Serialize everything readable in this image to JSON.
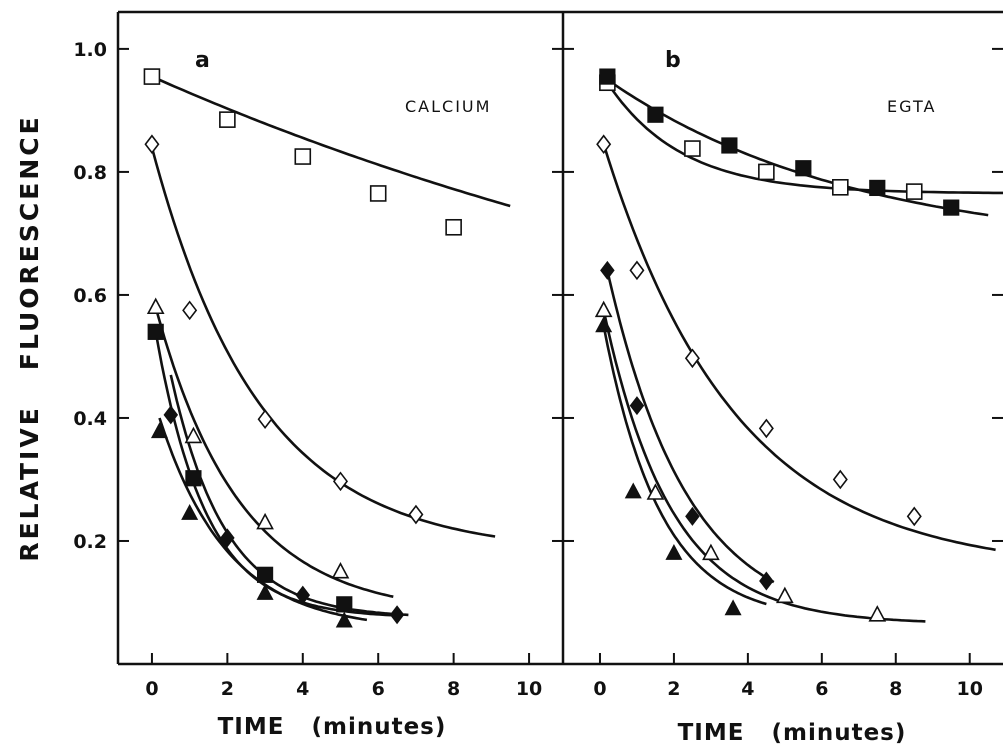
{
  "chart_data": [
    {
      "type": "scatter",
      "panel": "a",
      "condition": "CALCIUM",
      "xlabel": "TIME   (minutes)",
      "ylabel": "RELATIVE   FLUORESCENCE",
      "xlim": [
        -0.9,
        10.9
      ],
      "ylim": [
        0.0,
        1.06
      ],
      "xticks": [
        0,
        2,
        4,
        6,
        8,
        10
      ],
      "yticks": [
        0.2,
        0.4,
        0.6,
        0.8,
        1.0
      ],
      "xtick_labels": [
        "0",
        "2",
        "4",
        "6",
        "8",
        "10"
      ],
      "ytick_labels": [
        "0.2",
        "0.4",
        "0.6",
        "0.8",
        "1.0"
      ],
      "series": [
        {
          "marker": "open-square",
          "x": [
            0,
            2,
            4,
            6,
            8
          ],
          "y": [
            0.955,
            0.885,
            0.825,
            0.765,
            0.71
          ],
          "fit": {
            "a": 0.955,
            "k": 0.045,
            "c": 0.35,
            "xmax": 9.5
          }
        },
        {
          "marker": "open-diamond",
          "x": [
            0,
            1,
            3,
            5,
            7
          ],
          "y": [
            0.845,
            0.575,
            0.398,
            0.297,
            0.243
          ],
          "fit": {
            "a": 0.84,
            "k": 0.35,
            "c": 0.18,
            "xmax": 9.1
          }
        },
        {
          "marker": "open-triangle",
          "x": [
            0.1,
            1.1,
            3,
            5
          ],
          "y": [
            0.58,
            0.37,
            0.23,
            0.15
          ],
          "fit": {
            "a": 0.58,
            "k": 0.45,
            "c": 0.08,
            "xmax": 6.4
          }
        },
        {
          "marker": "filled-square",
          "x": [
            0.1,
            1.1,
            3,
            5.1
          ],
          "y": [
            0.54,
            0.302,
            0.145,
            0.097
          ],
          "fit": {
            "a": 0.54,
            "k": 0.75,
            "c": 0.075,
            "xmax": 6.6
          }
        },
        {
          "marker": "filled-diamond",
          "x": [
            0.5,
            2,
            4,
            6.5
          ],
          "y": [
            0.405,
            0.205,
            0.112,
            0.08
          ],
          "fit": {
            "a": 0.47,
            "k": 0.7,
            "c": 0.075,
            "xmax": 6.8
          }
        },
        {
          "marker": "filled-triangle",
          "x": [
            0.2,
            1,
            3,
            5.1
          ],
          "y": [
            0.378,
            0.245,
            0.115,
            0.07
          ],
          "fit": {
            "a": 0.4,
            "k": 0.55,
            "c": 0.055,
            "xmax": 5.7
          }
        }
      ]
    },
    {
      "type": "scatter",
      "panel": "b",
      "condition": "EGTA",
      "xlabel": "TIME   (minutes)",
      "ylabel": "",
      "xlim": [
        -1.0,
        10.9
      ],
      "ylim": [
        0.0,
        1.06
      ],
      "xticks": [
        0,
        2,
        4,
        6,
        8,
        10
      ],
      "yticks": [
        0.2,
        0.4,
        0.6,
        0.8,
        1.0
      ],
      "xtick_labels": [
        "0",
        "2",
        "4",
        "6",
        "8",
        "10"
      ],
      "ytick_labels": [],
      "series": [
        {
          "marker": "open-square",
          "x": [
            0.2,
            2.5,
            4.5,
            6.5,
            8.5
          ],
          "y": [
            0.945,
            0.838,
            0.8,
            0.775,
            0.768
          ],
          "fit": {
            "a": 0.945,
            "k": 0.5,
            "c": 0.765,
            "xmax": 10.9
          }
        },
        {
          "marker": "filled-square",
          "x": [
            0.2,
            1.5,
            3.5,
            5.5,
            7.5,
            9.5
          ],
          "y": [
            0.955,
            0.893,
            0.843,
            0.806,
            0.774,
            0.742
          ],
          "fit": {
            "a": 0.95,
            "k": 0.15,
            "c": 0.67,
            "xmax": 10.5
          }
        },
        {
          "marker": "open-diamond",
          "x": [
            0.1,
            1,
            2.5,
            4.5,
            6.5,
            8.5
          ],
          "y": [
            0.845,
            0.64,
            0.497,
            0.383,
            0.3,
            0.24
          ],
          "fit": {
            "a": 0.845,
            "k": 0.28,
            "c": 0.15,
            "xmax": 10.7
          }
        },
        {
          "marker": "filled-diamond",
          "x": [
            0.2,
            1,
            2.5,
            4.5
          ],
          "y": [
            0.64,
            0.42,
            0.24,
            0.135
          ],
          "fit": {
            "a": 0.64,
            "k": 0.46,
            "c": 0.06,
            "xmax": 4.7
          }
        },
        {
          "marker": "open-triangle",
          "x": [
            0.1,
            1.5,
            3,
            5,
            7.5
          ],
          "y": [
            0.575,
            0.278,
            0.18,
            0.11,
            0.08
          ],
          "fit": {
            "a": 0.575,
            "k": 0.55,
            "c": 0.065,
            "xmax": 8.8
          }
        },
        {
          "marker": "filled-triangle",
          "x": [
            0.1,
            0.9,
            2,
            3.6
          ],
          "y": [
            0.55,
            0.28,
            0.18,
            0.09
          ],
          "fit": {
            "a": 0.55,
            "k": 0.65,
            "c": 0.07,
            "xmax": 4.5
          }
        }
      ]
    }
  ]
}
